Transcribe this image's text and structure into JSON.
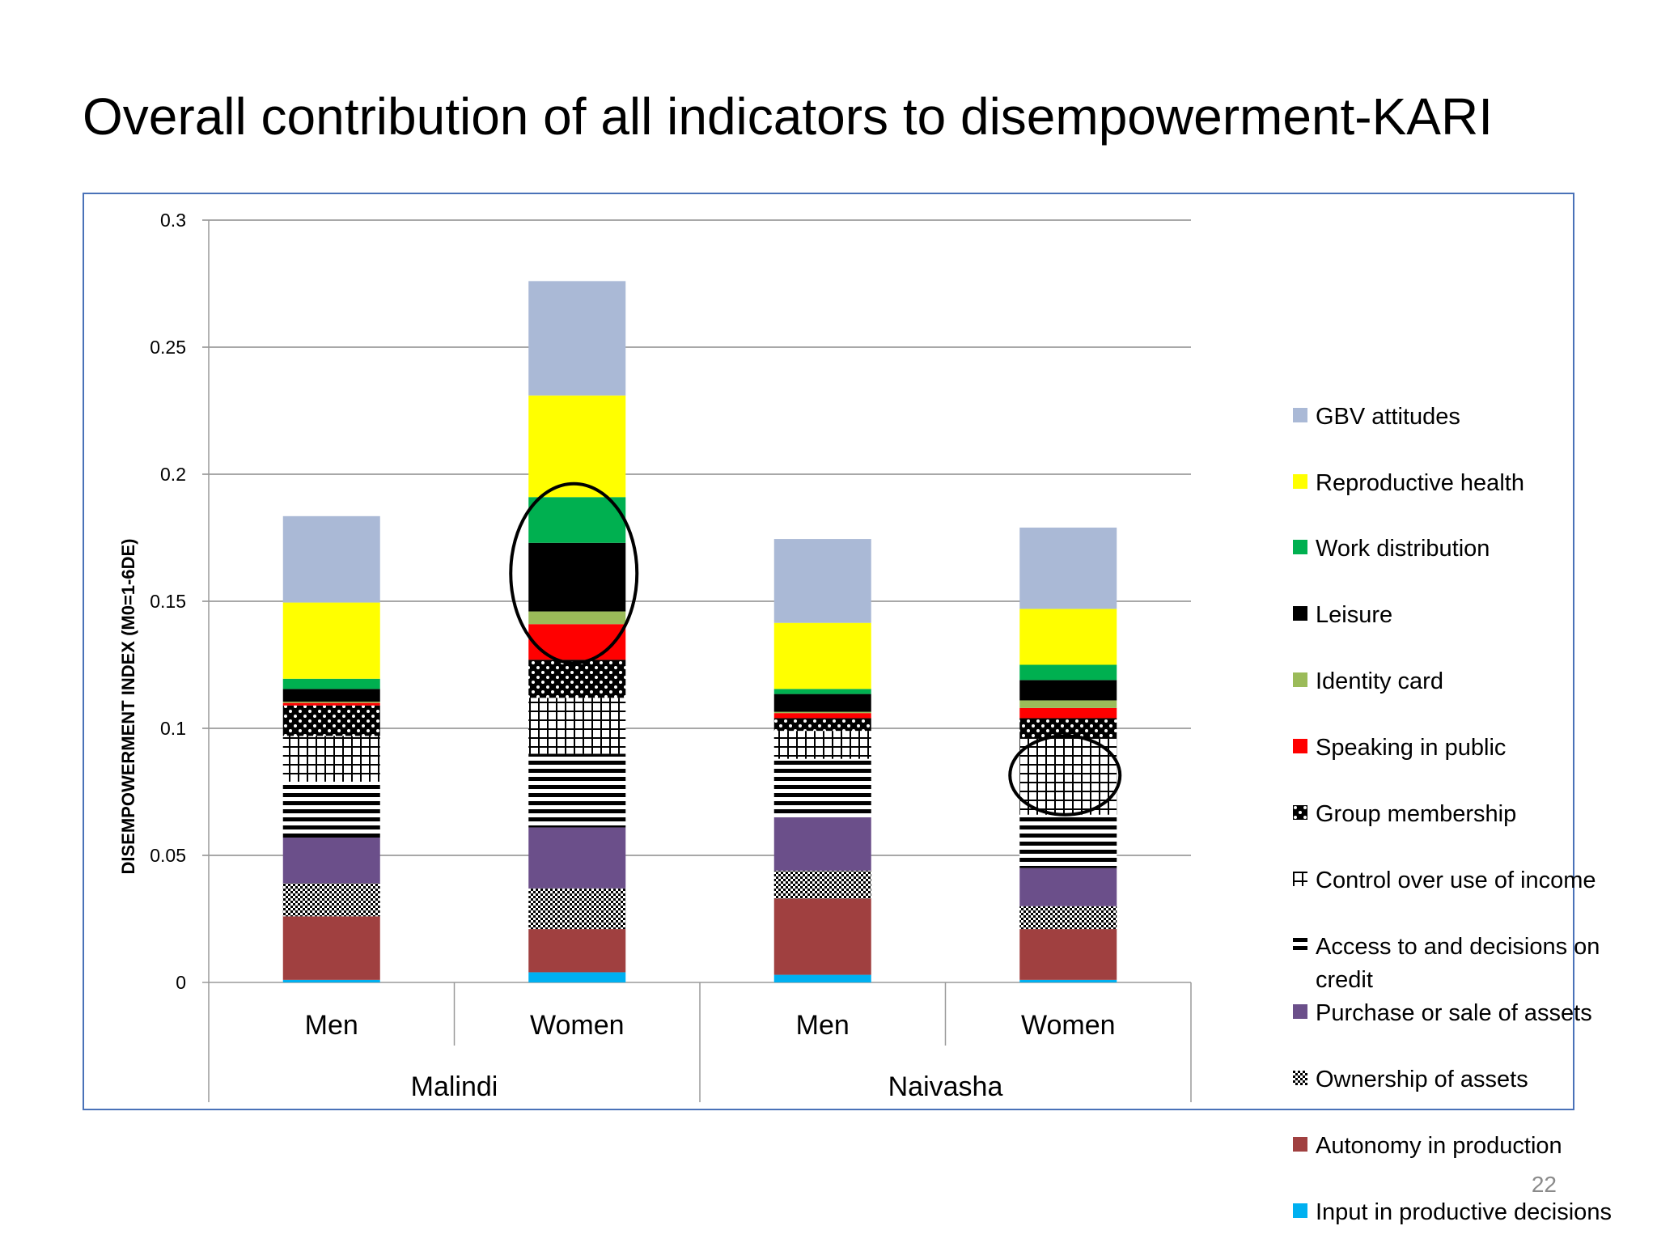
{
  "slide": {
    "title": "Overall contribution of all indicators to disempowerment-KARI",
    "page_number": "22"
  },
  "colors": {
    "gbv": "#aab9d6",
    "reproductive": "#ffff00",
    "work": "#00b050",
    "leisure": "#000000",
    "identity": "#9bbb59",
    "speaking": "#ff0000",
    "assets_purchase": "#6b4f8a",
    "autonomy": "#a04040",
    "input": "#00b0f0",
    "frame": "#4a72b8",
    "highlight_ring": "#000000"
  },
  "chart_data": {
    "type": "bar",
    "stacked": true,
    "ylabel": "DISEMPOWERMENT INDEX (M0=1-6DE)",
    "ylim": [
      0,
      0.3
    ],
    "yticks": [
      "0",
      "0.05",
      "0.1",
      "0.15",
      "0.2",
      "0.25",
      "0.3"
    ],
    "grid": true,
    "legend_position": "right",
    "groups": [
      {
        "name": "Malindi",
        "categories": [
          "Men",
          "Women"
        ]
      },
      {
        "name": "Naivasha",
        "categories": [
          "Men",
          "Women"
        ]
      }
    ],
    "categories": [
      "Men",
      "Women",
      "Men",
      "Women"
    ],
    "series": [
      {
        "name": "Input in productive decisions",
        "fill": "solid",
        "color": "#00b0f0",
        "values": [
          0.001,
          0.004,
          0.003,
          0.001
        ]
      },
      {
        "name": "Autonomy in production",
        "fill": "solid",
        "color": "#a04040",
        "values": [
          0.025,
          0.017,
          0.03,
          0.02
        ]
      },
      {
        "name": "Ownership of assets",
        "fill": "checker",
        "color": "#000000",
        "values": [
          0.013,
          0.016,
          0.011,
          0.009
        ]
      },
      {
        "name": "Purchase or sale of assets",
        "fill": "solid",
        "color": "#6b4f8a",
        "values": [
          0.018,
          0.024,
          0.021,
          0.015
        ]
      },
      {
        "name": "Access to and decisions on credit",
        "fill": "hstripes",
        "color": "#000000",
        "values": [
          0.022,
          0.029,
          0.023,
          0.021
        ]
      },
      {
        "name": "Control over use of income",
        "fill": "grid",
        "color": "#000000",
        "values": [
          0.018,
          0.022,
          0.011,
          0.03
        ]
      },
      {
        "name": "Group membership",
        "fill": "dots",
        "color": "#000000",
        "values": [
          0.012,
          0.015,
          0.005,
          0.008
        ]
      },
      {
        "name": "Speaking in public",
        "fill": "solid",
        "color": "#ff0000",
        "values": [
          0.001,
          0.014,
          0.002,
          0.004
        ]
      },
      {
        "name": "Identity card",
        "fill": "solid",
        "color": "#9bbb59",
        "values": [
          0.0005,
          0.005,
          0.0005,
          0.003
        ]
      },
      {
        "name": "Leisure",
        "fill": "solid",
        "color": "#000000",
        "values": [
          0.005,
          0.027,
          0.007,
          0.008
        ]
      },
      {
        "name": "Work distribution",
        "fill": "solid",
        "color": "#00b050",
        "values": [
          0.004,
          0.018,
          0.002,
          0.006
        ]
      },
      {
        "name": "Reproductive health",
        "fill": "solid",
        "color": "#ffff00",
        "values": [
          0.03,
          0.04,
          0.026,
          0.022
        ]
      },
      {
        "name": "GBV attitudes",
        "fill": "solid",
        "color": "#aab9d6",
        "values": [
          0.034,
          0.045,
          0.033,
          0.032
        ]
      }
    ],
    "highlights": [
      {
        "category_index": 1,
        "from": 0.127,
        "to": 0.195
      },
      {
        "category_index": 3,
        "from": 0.066,
        "to": 0.097
      }
    ]
  }
}
